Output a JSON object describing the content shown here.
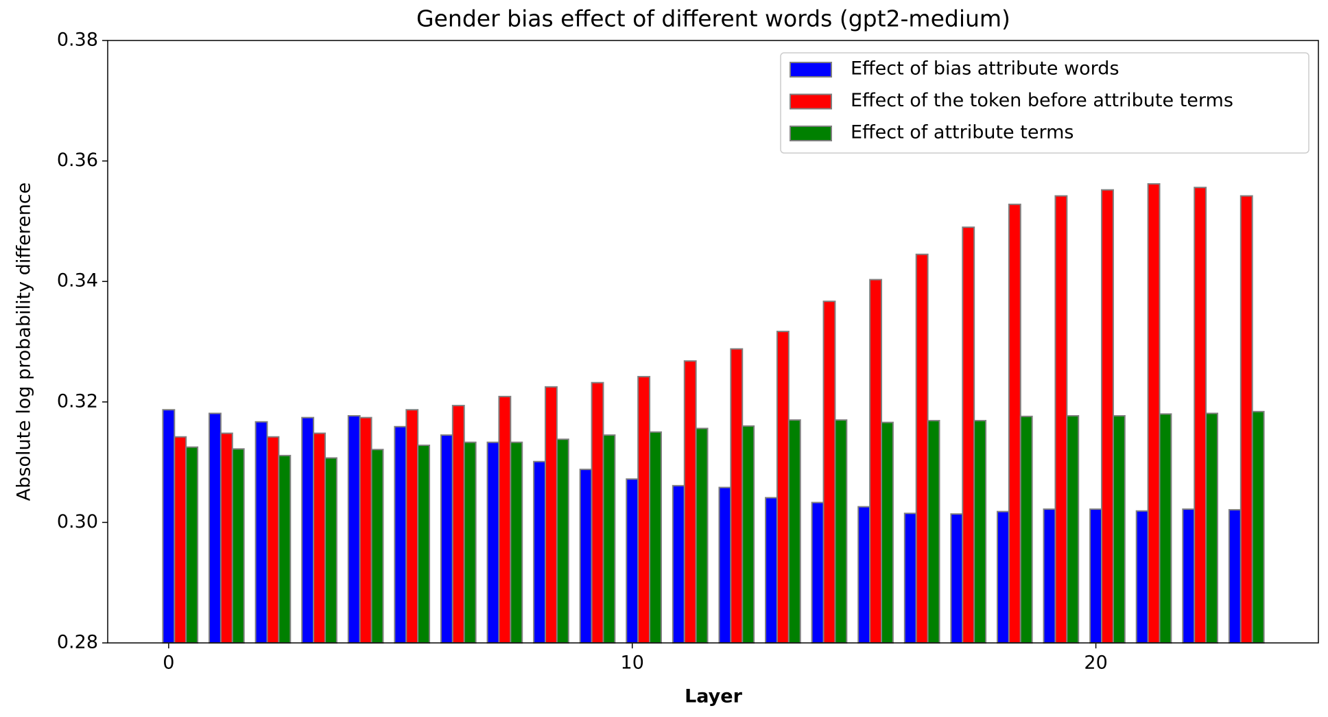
{
  "chart_data": {
    "type": "bar",
    "title": "Gender bias effect of different words (gpt2-medium)",
    "x_label": "Layer",
    "y_label": "Absolute log probability difference",
    "x": [
      0,
      1,
      2,
      3,
      4,
      5,
      6,
      7,
      8,
      9,
      10,
      11,
      12,
      13,
      14,
      15,
      16,
      17,
      18,
      19,
      20,
      21,
      22,
      23
    ],
    "series": [
      {
        "name": "Effect of bias attribute words",
        "color": "#0000ff",
        "values": [
          0.3187,
          0.3181,
          0.3167,
          0.3174,
          0.3177,
          0.3159,
          0.3145,
          0.3133,
          0.3101,
          0.3088,
          0.3072,
          0.3061,
          0.3058,
          0.3041,
          0.3033,
          0.3026,
          0.3015,
          0.3014,
          0.3018,
          0.3022,
          0.3022,
          0.3019,
          0.3022,
          0.3021
        ]
      },
      {
        "name": "Effect of the token before attribute terms",
        "color": "#ff0000",
        "values": [
          0.3142,
          0.3148,
          0.3142,
          0.3148,
          0.3174,
          0.3187,
          0.3194,
          0.3209,
          0.3225,
          0.3232,
          0.3242,
          0.3268,
          0.3288,
          0.3317,
          0.3367,
          0.3403,
          0.3445,
          0.349,
          0.3528,
          0.3542,
          0.3552,
          0.3562,
          0.3556,
          0.3542
        ]
      },
      {
        "name": "Effect of attribute terms",
        "color": "#008000",
        "values": [
          0.3125,
          0.3122,
          0.3111,
          0.3107,
          0.3121,
          0.3128,
          0.3133,
          0.3133,
          0.3138,
          0.3145,
          0.315,
          0.3156,
          0.316,
          0.317,
          0.317,
          0.3166,
          0.3169,
          0.3169,
          0.3176,
          0.3177,
          0.3177,
          0.318,
          0.3181,
          0.3184
        ]
      }
    ],
    "xlim": [
      -1.315,
      24.8
    ],
    "xticks": [
      0,
      10,
      20
    ],
    "ylim": [
      0.28,
      0.38
    ],
    "yticks": [
      0.28,
      {
        "value": 0.3,
        "label": "0.30"
      },
      0.32,
      0.34,
      0.36,
      0.38
    ],
    "legend": "upper right",
    "edge_color": "#808080"
  }
}
